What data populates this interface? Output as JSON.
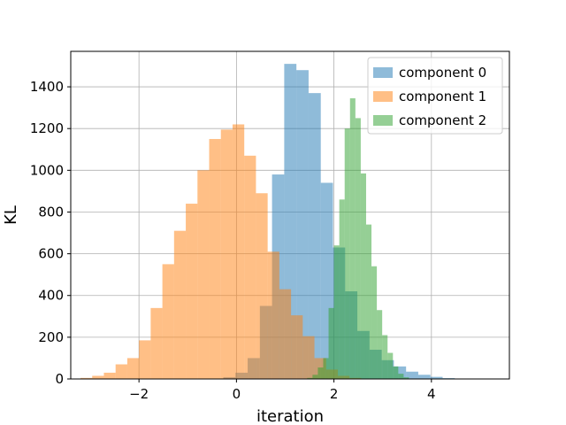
{
  "chart_data": {
    "type": "histogram",
    "title": "",
    "xlabel": "iteration",
    "ylabel": "KL",
    "xlim": [
      -3.4,
      5.6
    ],
    "ylim": [
      0,
      1570
    ],
    "xticks": [
      -2,
      0,
      2,
      4
    ],
    "xtick_labels": [
      "−2",
      "0",
      "2",
      "4"
    ],
    "yticks": [
      0,
      200,
      400,
      600,
      800,
      1000,
      1200,
      1400
    ],
    "grid": true,
    "legend_position": "top-right",
    "series": [
      {
        "name": "component 0",
        "color": "#1f77b4",
        "bins": [
          {
            "x0": -0.52,
            "x1": -0.27,
            "y": 1
          },
          {
            "x0": -0.27,
            "x1": -0.02,
            "y": 8
          },
          {
            "x0": -0.02,
            "x1": 0.23,
            "y": 30
          },
          {
            "x0": 0.23,
            "x1": 0.48,
            "y": 100
          },
          {
            "x0": 0.48,
            "x1": 0.73,
            "y": 350
          },
          {
            "x0": 0.73,
            "x1": 0.98,
            "y": 980
          },
          {
            "x0": 0.98,
            "x1": 1.23,
            "y": 1510
          },
          {
            "x0": 1.23,
            "x1": 1.48,
            "y": 1480
          },
          {
            "x0": 1.48,
            "x1": 1.73,
            "y": 1370
          },
          {
            "x0": 1.73,
            "x1": 1.98,
            "y": 940
          },
          {
            "x0": 1.98,
            "x1": 2.23,
            "y": 630
          },
          {
            "x0": 2.23,
            "x1": 2.48,
            "y": 420
          },
          {
            "x0": 2.48,
            "x1": 2.73,
            "y": 230
          },
          {
            "x0": 2.73,
            "x1": 2.98,
            "y": 140
          },
          {
            "x0": 2.98,
            "x1": 3.23,
            "y": 90
          },
          {
            "x0": 3.23,
            "x1": 3.48,
            "y": 60
          },
          {
            "x0": 3.48,
            "x1": 3.73,
            "y": 35
          },
          {
            "x0": 3.73,
            "x1": 3.98,
            "y": 20
          },
          {
            "x0": 3.98,
            "x1": 4.23,
            "y": 10
          },
          {
            "x0": 4.23,
            "x1": 4.48,
            "y": 4
          },
          {
            "x0": 4.48,
            "x1": 4.73,
            "y": 2
          },
          {
            "x0": 4.73,
            "x1": 4.98,
            "y": 1
          },
          {
            "x0": 4.98,
            "x1": 5.23,
            "y": 1
          }
        ]
      },
      {
        "name": "component 1",
        "color": "#ff7f0e",
        "bins": [
          {
            "x0": -3.2,
            "x1": -2.96,
            "y": 5
          },
          {
            "x0": -2.96,
            "x1": -2.72,
            "y": 15
          },
          {
            "x0": -2.72,
            "x1": -2.48,
            "y": 30
          },
          {
            "x0": -2.48,
            "x1": -2.24,
            "y": 70
          },
          {
            "x0": -2.24,
            "x1": -2.0,
            "y": 100
          },
          {
            "x0": -2.0,
            "x1": -1.76,
            "y": 185
          },
          {
            "x0": -1.76,
            "x1": -1.52,
            "y": 340
          },
          {
            "x0": -1.52,
            "x1": -1.28,
            "y": 550
          },
          {
            "x0": -1.28,
            "x1": -1.04,
            "y": 710
          },
          {
            "x0": -1.04,
            "x1": -0.8,
            "y": 840
          },
          {
            "x0": -0.8,
            "x1": -0.56,
            "y": 1000
          },
          {
            "x0": -0.56,
            "x1": -0.32,
            "y": 1150
          },
          {
            "x0": -0.32,
            "x1": -0.08,
            "y": 1195
          },
          {
            "x0": -0.08,
            "x1": 0.16,
            "y": 1220
          },
          {
            "x0": 0.16,
            "x1": 0.4,
            "y": 1070
          },
          {
            "x0": 0.4,
            "x1": 0.64,
            "y": 890
          },
          {
            "x0": 0.64,
            "x1": 0.88,
            "y": 610
          },
          {
            "x0": 0.88,
            "x1": 1.12,
            "y": 430
          },
          {
            "x0": 1.12,
            "x1": 1.36,
            "y": 305
          },
          {
            "x0": 1.36,
            "x1": 1.6,
            "y": 205
          },
          {
            "x0": 1.6,
            "x1": 1.84,
            "y": 100
          },
          {
            "x0": 1.84,
            "x1": 2.08,
            "y": 45
          },
          {
            "x0": 2.08,
            "x1": 2.32,
            "y": 15
          },
          {
            "x0": 2.32,
            "x1": 2.56,
            "y": 5
          }
        ]
      },
      {
        "name": "component 2",
        "color": "#2ca02c",
        "bins": [
          {
            "x0": 1.45,
            "x1": 1.56,
            "y": 5
          },
          {
            "x0": 1.56,
            "x1": 1.67,
            "y": 20
          },
          {
            "x0": 1.67,
            "x1": 1.78,
            "y": 55
          },
          {
            "x0": 1.78,
            "x1": 1.89,
            "y": 100
          },
          {
            "x0": 1.89,
            "x1": 2.0,
            "y": 340
          },
          {
            "x0": 2.0,
            "x1": 2.11,
            "y": 640
          },
          {
            "x0": 2.11,
            "x1": 2.22,
            "y": 860
          },
          {
            "x0": 2.22,
            "x1": 2.33,
            "y": 1200
          },
          {
            "x0": 2.33,
            "x1": 2.44,
            "y": 1345
          },
          {
            "x0": 2.44,
            "x1": 2.55,
            "y": 1250
          },
          {
            "x0": 2.55,
            "x1": 2.66,
            "y": 985
          },
          {
            "x0": 2.66,
            "x1": 2.77,
            "y": 740
          },
          {
            "x0": 2.77,
            "x1": 2.88,
            "y": 540
          },
          {
            "x0": 2.88,
            "x1": 2.99,
            "y": 330
          },
          {
            "x0": 2.99,
            "x1": 3.1,
            "y": 210
          },
          {
            "x0": 3.1,
            "x1": 3.21,
            "y": 125
          },
          {
            "x0": 3.21,
            "x1": 3.32,
            "y": 60
          },
          {
            "x0": 3.32,
            "x1": 3.43,
            "y": 25
          },
          {
            "x0": 3.43,
            "x1": 3.54,
            "y": 8
          }
        ]
      }
    ]
  }
}
